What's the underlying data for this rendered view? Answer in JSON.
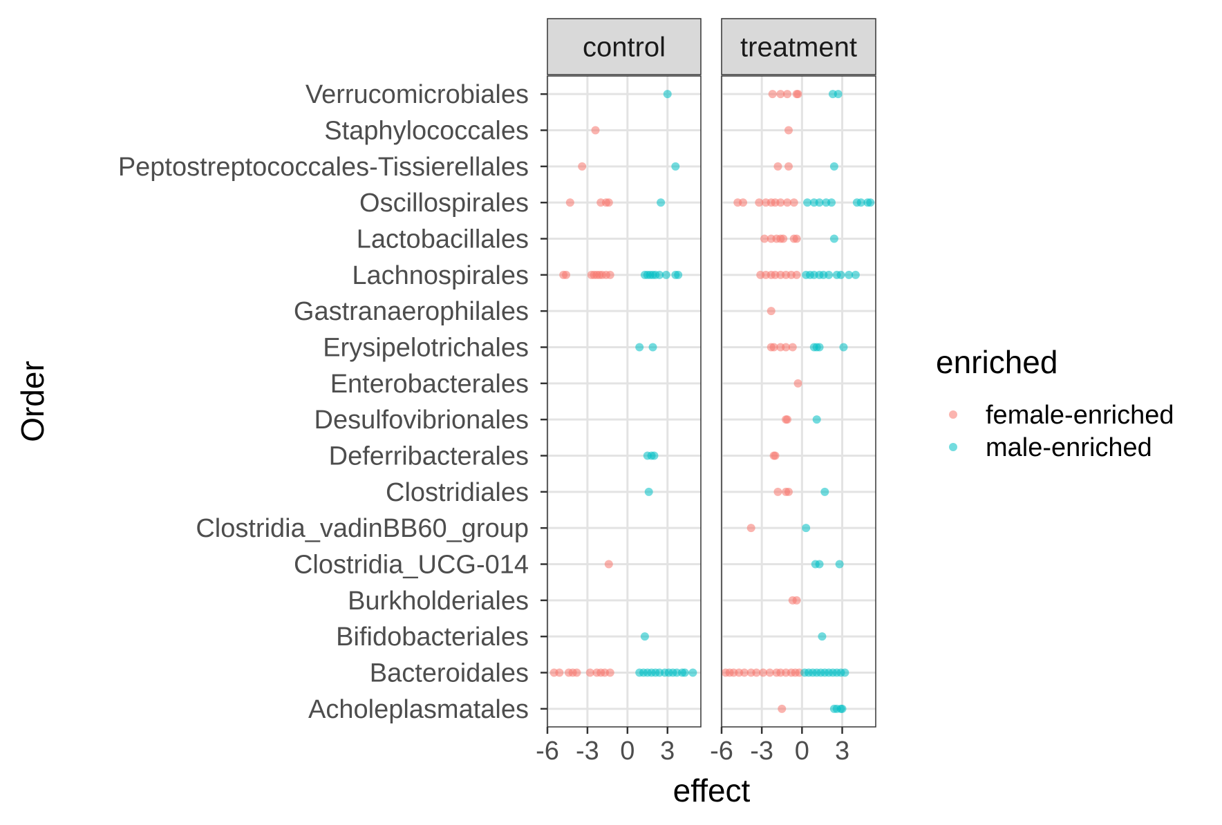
{
  "chart_data": {
    "type": "scatter",
    "xlabel": "effect",
    "ylabel": "Order",
    "xlim": [
      -6,
      5.5
    ],
    "x_ticks": [
      -6,
      -3,
      0,
      3
    ],
    "x_tick_labels": [
      "-6",
      "-3",
      "0",
      "3"
    ],
    "grid": true,
    "legend_placement": "right",
    "legend": {
      "title": "enriched",
      "entries": [
        {
          "key": "female-enriched",
          "label": "female-enriched",
          "color": "#F8766D"
        },
        {
          "key": "male-enriched",
          "label": "male-enriched",
          "color": "#00BFC4"
        }
      ]
    },
    "categories": [
      "Verrucomicrobiales",
      "Staphylococcales",
      "Peptostreptococcales-Tissierellales",
      "Oscillospirales",
      "Lactobacillales",
      "Lachnospirales",
      "Gastranaerophilales",
      "Erysipelotrichales",
      "Enterobacterales",
      "Desulfovibrionales",
      "Deferribacterales",
      "Clostridiales",
      "Clostridia_vadinBB60_group",
      "Clostridia_UCG-014",
      "Burkholderiales",
      "Bifidobacteriales",
      "Bacteroidales",
      "Acholeplasmatales"
    ],
    "panels": [
      {
        "label": "control",
        "points": {
          "Verrucomicrobiales": {
            "female": [],
            "male": [
              3.0
            ]
          },
          "Staphylococcales": {
            "female": [
              -2.4
            ],
            "male": []
          },
          "Peptostreptococcales-Tissierellales": {
            "female": [
              -3.4
            ],
            "male": [
              3.6
            ]
          },
          "Oscillospirales": {
            "female": [
              -4.3,
              -2.0,
              -1.6,
              -1.4
            ],
            "male": [
              2.5
            ]
          },
          "Lactobacillales": {
            "female": [],
            "male": []
          },
          "Lachnospirales": {
            "female": [
              -4.8,
              -4.6,
              -2.7,
              -2.5,
              -2.3,
              -2.1,
              -1.9,
              -1.6,
              -1.3
            ],
            "male": [
              1.3,
              1.5,
              1.7,
              1.9,
              2.1,
              2.4,
              2.9,
              3.6,
              3.8
            ]
          },
          "Gastranaerophilales": {
            "female": [],
            "male": []
          },
          "Erysipelotrichales": {
            "female": [],
            "male": [
              0.9,
              1.9
            ]
          },
          "Enterobacterales": {
            "female": [],
            "male": []
          },
          "Desulfovibrionales": {
            "female": [],
            "male": []
          },
          "Deferribacterales": {
            "female": [],
            "male": [
              1.5,
              1.8,
              2.0
            ]
          },
          "Clostridiales": {
            "female": [],
            "male": [
              1.6
            ]
          },
          "Clostridia_vadinBB60_group": {
            "female": [],
            "male": []
          },
          "Clostridia_UCG-014": {
            "female": [
              -1.4
            ],
            "male": []
          },
          "Burkholderiales": {
            "female": [],
            "male": []
          },
          "Bifidobacteriales": {
            "female": [],
            "male": [
              1.3
            ]
          },
          "Bacteroidales": {
            "female": [
              -5.5,
              -5.1,
              -4.4,
              -4.1,
              -3.8,
              -2.8,
              -2.3,
              -2.0,
              -1.7,
              -1.3
            ],
            "male": [
              0.9,
              1.2,
              1.5,
              1.8,
              2.1,
              2.4,
              2.8,
              3.1,
              3.4,
              3.7,
              4.1,
              4.3,
              4.9
            ]
          },
          "Acholeplasmatales": {
            "female": [],
            "male": []
          }
        }
      },
      {
        "label": "treatment",
        "points": {
          "Verrucomicrobiales": {
            "female": [
              -2.2,
              -1.6,
              -1.1,
              -0.4,
              -0.3
            ],
            "male": [
              2.3,
              2.7
            ]
          },
          "Staphylococcales": {
            "female": [
              -1.0
            ],
            "male": []
          },
          "Peptostreptococcales-Tissierellales": {
            "female": [
              -1.8,
              -1.0
            ],
            "male": [
              2.4
            ]
          },
          "Oscillospirales": {
            "female": [
              -4.8,
              -4.4,
              -3.2,
              -2.7,
              -2.3,
              -2.0,
              -1.6,
              -1.1,
              -0.6
            ],
            "male": [
              0.4,
              0.9,
              1.3,
              1.8,
              2.2,
              4.1,
              4.4,
              4.9,
              5.1
            ]
          },
          "Lactobacillales": {
            "female": [
              -2.8,
              -2.3,
              -1.9,
              -1.6,
              -1.4,
              -0.6,
              -0.4
            ],
            "male": [
              2.4
            ]
          },
          "Lachnospirales": {
            "female": [
              -3.1,
              -2.7,
              -2.3,
              -2.0,
              -1.6,
              -1.2,
              -0.8,
              -0.4
            ],
            "male": [
              0.3,
              0.6,
              0.9,
              1.3,
              1.6,
              2.0,
              2.6,
              2.9,
              3.5,
              4.0
            ]
          },
          "Gastranaerophilales": {
            "female": [
              -2.3
            ],
            "male": []
          },
          "Erysipelotrichales": {
            "female": [
              -2.3,
              -2.1,
              -1.6,
              -1.2,
              -0.7
            ],
            "male": [
              0.9,
              1.1,
              1.3,
              3.1
            ]
          },
          "Enterobacterales": {
            "female": [
              -0.3
            ],
            "male": []
          },
          "Desulfovibrionales": {
            "female": [
              -1.2,
              -1.1
            ],
            "male": [
              1.1
            ]
          },
          "Deferribacterales": {
            "female": [
              -2.1,
              -2.0
            ],
            "male": []
          },
          "Clostridiales": {
            "female": [
              -1.8,
              -1.2,
              -1.0
            ],
            "male": [
              1.7
            ]
          },
          "Clostridia_vadinBB60_group": {
            "female": [
              -3.8
            ],
            "male": [
              0.3
            ]
          },
          "Clostridia_UCG-014": {
            "female": [],
            "male": [
              1.0,
              1.3,
              2.8
            ]
          },
          "Burkholderiales": {
            "female": [
              -0.7,
              -0.4
            ],
            "male": []
          },
          "Bifidobacteriales": {
            "female": [],
            "male": [
              1.5
            ]
          },
          "Bacteroidales": {
            "female": [
              -5.7,
              -5.4,
              -5.1,
              -4.7,
              -4.3,
              -3.8,
              -3.4,
              -2.9,
              -2.4,
              -1.9,
              -1.6,
              -1.2,
              -0.8,
              -0.5,
              -0.2
            ],
            "male": [
              0.2,
              0.5,
              0.8,
              1.1,
              1.4,
              1.7,
              2.0,
              2.3,
              2.6,
              2.9,
              3.2
            ]
          },
          "Acholeplasmatales": {
            "female": [
              -1.5
            ],
            "male": [
              2.4,
              2.6,
              2.9,
              3.0
            ]
          }
        }
      }
    ]
  }
}
